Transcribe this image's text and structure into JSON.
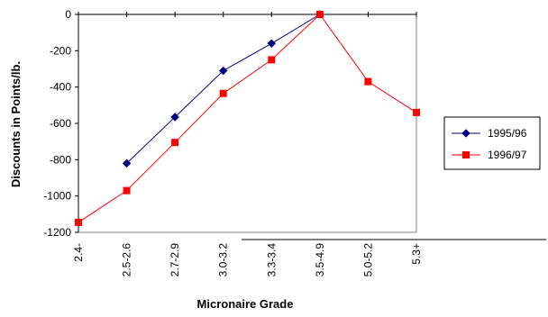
{
  "chart_data": {
    "type": "line",
    "xlabel": "Micronaire Grade",
    "ylabel": "Discounts in Points/lb.",
    "categories": [
      "2.4-",
      "2.5-2.6",
      "2.7-2.9",
      "3.0-3.2",
      "3.3-3.4",
      "3.5-4.9",
      "5.0-5.2",
      "5.3+"
    ],
    "ylim": [
      -1200,
      0
    ],
    "yticks": [
      0,
      -200,
      -400,
      -600,
      -800,
      -1000,
      -1200
    ],
    "grid": false,
    "legend_position": "right",
    "series": [
      {
        "name": "1995/96",
        "color": "#000080",
        "marker": "diamond",
        "values": [
          null,
          -820,
          -565,
          -310,
          -160,
          0,
          null,
          null
        ]
      },
      {
        "name": "1996/97",
        "color": "#ff0000",
        "marker": "square",
        "values": [
          -1145,
          -970,
          -705,
          -435,
          -250,
          0,
          -370,
          -540
        ]
      }
    ]
  }
}
